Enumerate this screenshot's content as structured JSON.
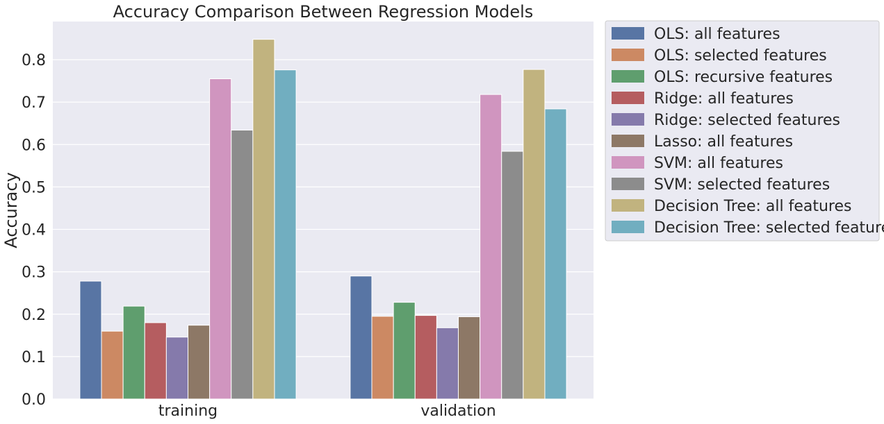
{
  "chart_data": {
    "type": "bar",
    "title": "Accuracy Comparison Between Regression Models",
    "xlabel": "",
    "ylabel": "Accuracy",
    "categories": [
      "training",
      "validation"
    ],
    "ylim": [
      0,
      0.89
    ],
    "yticks": [
      0.0,
      0.1,
      0.2,
      0.3,
      0.4,
      0.5,
      0.6,
      0.7,
      0.8
    ],
    "ytick_labels": [
      "0.0",
      "0.1",
      "0.2",
      "0.3",
      "0.4",
      "0.5",
      "0.6",
      "0.7",
      "0.8"
    ],
    "grid": true,
    "legend_position": "outside-right",
    "series": [
      {
        "name": "OLS: all features",
        "color": "#5875a4",
        "values": [
          0.278,
          0.29
        ]
      },
      {
        "name": "OLS: selected features",
        "color": "#cc8963",
        "values": [
          0.16,
          0.195
        ]
      },
      {
        "name": "OLS: recursive features",
        "color": "#5f9e6e",
        "values": [
          0.219,
          0.228
        ]
      },
      {
        "name": "Ridge: all features",
        "color": "#b55d60",
        "values": [
          0.18,
          0.197
        ]
      },
      {
        "name": "Ridge: selected features",
        "color": "#857aab",
        "values": [
          0.146,
          0.168
        ]
      },
      {
        "name": "Lasso: all features",
        "color": "#8d7866",
        "values": [
          0.174,
          0.194
        ]
      },
      {
        "name": "SVM: all features",
        "color": "#d095bf",
        "values": [
          0.755,
          0.718
        ]
      },
      {
        "name": "SVM: selected features",
        "color": "#8c8c8c",
        "values": [
          0.634,
          0.584
        ]
      },
      {
        "name": "Decision Tree: all features",
        "color": "#c1b37f",
        "values": [
          0.848,
          0.777
        ]
      },
      {
        "name": "Decision Tree: selected features",
        "color": "#71aec0",
        "values": [
          0.776,
          0.684
        ]
      }
    ]
  },
  "style": {
    "plot_background": "#eaeaf2",
    "grid_color": "#ffffff",
    "legend_background": "#eaeaf2"
  }
}
